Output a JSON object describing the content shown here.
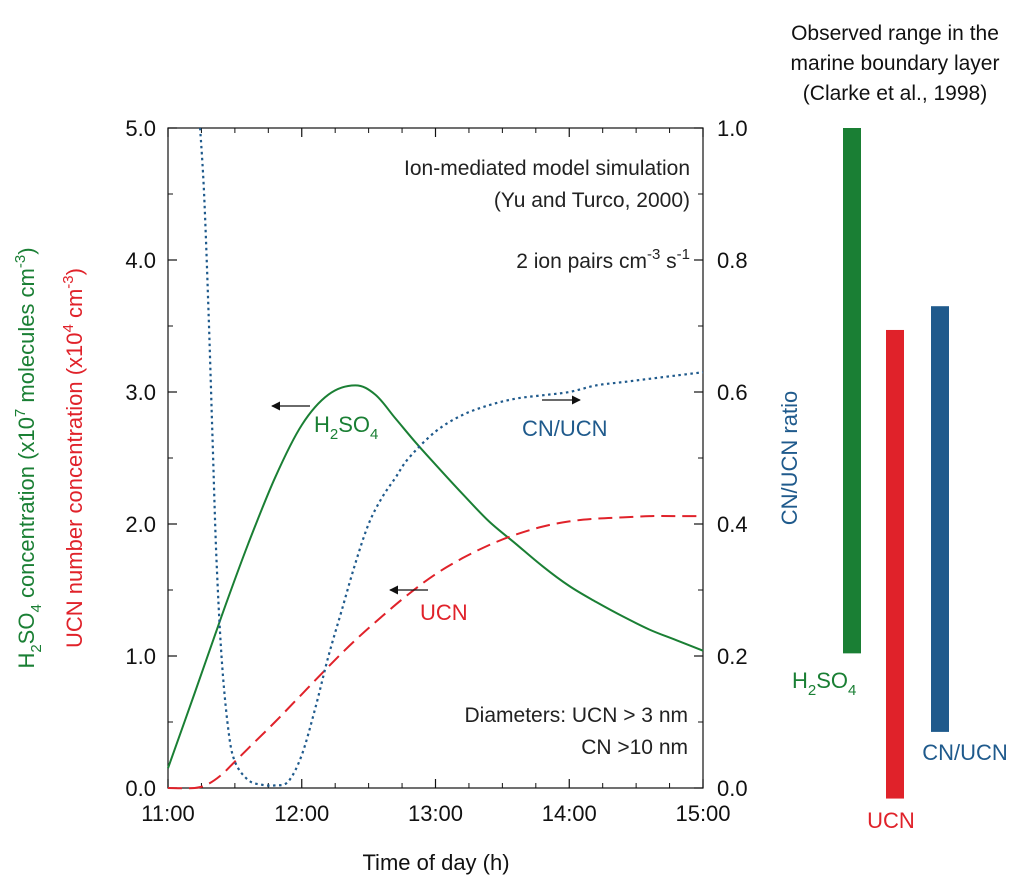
{
  "colors": {
    "h2so4": "#1a7f34",
    "ucn": "#e0222a",
    "cnucn": "#1f5a8c",
    "axis": "#111111"
  },
  "chart_data": [
    {
      "type": "line",
      "xlabel": "Time of day (h)",
      "ylabel_left_green": {
        "pre": "H",
        "sub1": "2",
        "mid": "SO",
        "sub2": "4",
        "post": " concentration (x10",
        "sup1": "7",
        "post2": " molecules cm",
        "sup2": "-3",
        "post3": ")"
      },
      "ylabel_left_red": {
        "pre": "UCN number concentration (x10",
        "sup1": "4",
        "mid": " cm",
        "sup2": "-3",
        "post": ")"
      },
      "ylabel_right": "CN/UCN ratio",
      "xlim": [
        11,
        15
      ],
      "ylim_left": [
        0,
        5
      ],
      "ylim_right": [
        0,
        1
      ],
      "xticks": [
        11,
        12,
        13,
        14,
        15
      ],
      "xtick_labels": [
        "11:00",
        "12:00",
        "13:00",
        "14:00",
        "15:00"
      ],
      "yticks_left": [
        0,
        1,
        2,
        3,
        4,
        5
      ],
      "ytick_labels_left": [
        "0.0",
        "1.0",
        "2.0",
        "3.0",
        "4.0",
        "5.0"
      ],
      "yticks_right": [
        0,
        0.2,
        0.4,
        0.6,
        0.8,
        1.0
      ],
      "ytick_labels_right": [
        "0.0",
        "0.2",
        "0.4",
        "0.6",
        "0.8",
        "1.0"
      ],
      "annotations": {
        "title_line1": "Ion-mediated model simulation",
        "title_line2": "(Yu and Turco, 2000)",
        "ion_rate": {
          "pre": "2 ion pairs cm",
          "sup1": "-3",
          "mid": " s",
          "sup2": "-1"
        },
        "diameters_line1": "Diameters: UCN >  3 nm",
        "diameters_line2": "CN >10 nm"
      },
      "series": [
        {
          "name": "H2SO4",
          "label": {
            "pre": "H",
            "sub1": "2",
            "mid": "SO",
            "sub2": "4"
          },
          "axis": "left",
          "style": "solid",
          "x": [
            11.0,
            11.2,
            11.4,
            11.6,
            11.8,
            12.0,
            12.2,
            12.4,
            12.55,
            12.7,
            12.85,
            13.0,
            13.2,
            13.4,
            13.6,
            13.8,
            14.0,
            14.2,
            14.4,
            14.6,
            14.8,
            15.0
          ],
          "y": [
            0.15,
            0.72,
            1.3,
            1.85,
            2.35,
            2.75,
            2.98,
            3.05,
            2.98,
            2.8,
            2.62,
            2.45,
            2.23,
            2.02,
            1.85,
            1.68,
            1.53,
            1.41,
            1.3,
            1.2,
            1.12,
            1.04
          ]
        },
        {
          "name": "UCN",
          "axis": "left",
          "style": "dashed",
          "x": [
            11.0,
            11.2,
            11.3,
            11.4,
            11.5,
            11.6,
            11.8,
            12.0,
            12.2,
            12.4,
            12.6,
            12.8,
            13.0,
            13.2,
            13.4,
            13.6,
            13.8,
            14.0,
            14.2,
            14.4,
            14.6,
            14.8,
            15.0
          ],
          "y": [
            0.0,
            0.0,
            0.03,
            0.1,
            0.2,
            0.3,
            0.5,
            0.71,
            0.92,
            1.12,
            1.3,
            1.47,
            1.62,
            1.74,
            1.84,
            1.92,
            1.98,
            2.02,
            2.04,
            2.05,
            2.06,
            2.06,
            2.06
          ]
        },
        {
          "name": "CN/UCN",
          "axis": "right",
          "style": "dotted",
          "x": [
            11.24,
            11.27,
            11.3,
            11.33,
            11.36,
            11.4,
            11.45,
            11.5,
            11.6,
            11.7,
            11.8,
            11.9,
            12.0,
            12.1,
            12.2,
            12.3,
            12.4,
            12.5,
            12.6,
            12.7,
            12.8,
            13.0,
            13.2,
            13.4,
            13.6,
            13.8,
            14.0,
            14.2,
            14.4,
            14.6,
            14.8,
            15.0
          ],
          "y": [
            1.0,
            0.9,
            0.74,
            0.55,
            0.36,
            0.2,
            0.09,
            0.04,
            0.012,
            0.005,
            0.004,
            0.01,
            0.05,
            0.12,
            0.2,
            0.27,
            0.34,
            0.4,
            0.44,
            0.47,
            0.5,
            0.54,
            0.565,
            0.58,
            0.59,
            0.595,
            0.6,
            0.61,
            0.615,
            0.62,
            0.625,
            0.63
          ]
        }
      ],
      "arrow_labels": [
        {
          "series": "H2SO4",
          "direction": "left"
        },
        {
          "series": "CN/UCN",
          "text": "CN/UCN",
          "direction": "right"
        },
        {
          "series": "UCN",
          "text": "UCN",
          "direction": "left"
        }
      ]
    },
    {
      "type": "bar",
      "title_lines": [
        "Observed range in the",
        "marine boundary layer",
        "(Clarke et al., 1998)"
      ],
      "note": "Vertical range bars aligned with the main plot's axes (H2SO4 and UCN on left axis, CN/UCN on right axis)",
      "bars": [
        {
          "name": "H2SO4",
          "axis": "left",
          "range": [
            1.02,
            5.0
          ],
          "label": {
            "pre": "H",
            "sub1": "2",
            "mid": "SO",
            "sub2": "4"
          }
        },
        {
          "name": "UCN",
          "axis": "left",
          "range": [
            -0.08,
            3.47
          ],
          "label_text": "UCN"
        },
        {
          "name": "CN/UCN",
          "axis": "right",
          "range": [
            0.085,
            0.73
          ],
          "label_text": "CN/UCN"
        }
      ]
    }
  ]
}
